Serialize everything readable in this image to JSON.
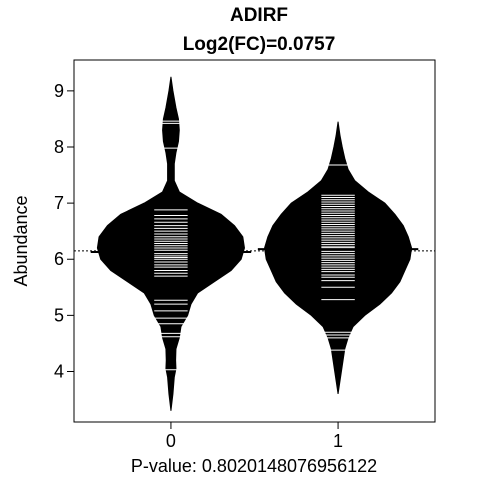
{
  "chart_data": {
    "type": "beanplot",
    "title": "ADIRF",
    "subtitle": "Log2(FC)=0.0757",
    "xlabel": "P-value: 0.8020148076956122",
    "ylabel": "Abundance",
    "ylim": [
      3.1,
      9.55
    ],
    "xlim": [
      -0.58,
      1.58
    ],
    "categories": [
      "0",
      "1"
    ],
    "yticks": [
      4,
      5,
      6,
      7,
      8,
      9
    ],
    "overall_mean": 6.15,
    "beans": [
      {
        "category": "0",
        "mean": 6.13,
        "density": [
          [
            3.3,
            0.0
          ],
          [
            3.6,
            0.012
          ],
          [
            3.9,
            0.02
          ],
          [
            4.05,
            0.03
          ],
          [
            4.2,
            0.028
          ],
          [
            4.4,
            0.03
          ],
          [
            4.6,
            0.05
          ],
          [
            4.8,
            0.06
          ],
          [
            5.0,
            0.1
          ],
          [
            5.2,
            0.12
          ],
          [
            5.4,
            0.16
          ],
          [
            5.6,
            0.26
          ],
          [
            5.8,
            0.36
          ],
          [
            6.0,
            0.42
          ],
          [
            6.2,
            0.44
          ],
          [
            6.4,
            0.43
          ],
          [
            6.6,
            0.38
          ],
          [
            6.8,
            0.3
          ],
          [
            7.0,
            0.16
          ],
          [
            7.2,
            0.05
          ],
          [
            7.4,
            0.02
          ],
          [
            7.7,
            0.02
          ],
          [
            7.9,
            0.03
          ],
          [
            8.1,
            0.045
          ],
          [
            8.3,
            0.05
          ],
          [
            8.5,
            0.045
          ],
          [
            8.7,
            0.03
          ],
          [
            9.0,
            0.012
          ],
          [
            9.25,
            0.0
          ]
        ],
        "observations": [
          4.03,
          4.62,
          4.68,
          4.85,
          4.95,
          5.08,
          5.2,
          5.27,
          5.7,
          5.75,
          5.8,
          5.86,
          5.9,
          5.95,
          6.0,
          6.03,
          6.06,
          6.1,
          6.13,
          6.16,
          6.2,
          6.24,
          6.28,
          6.32,
          6.36,
          6.4,
          6.45,
          6.5,
          6.55,
          6.6,
          6.66,
          6.72,
          6.78,
          6.88,
          7.98,
          8.42,
          8.46
        ]
      },
      {
        "category": "1",
        "mean": 6.18,
        "density": [
          [
            3.6,
            0.0
          ],
          [
            3.8,
            0.01
          ],
          [
            4.0,
            0.02
          ],
          [
            4.2,
            0.03
          ],
          [
            4.4,
            0.04
          ],
          [
            4.6,
            0.06
          ],
          [
            4.8,
            0.09
          ],
          [
            5.0,
            0.16
          ],
          [
            5.2,
            0.25
          ],
          [
            5.4,
            0.32
          ],
          [
            5.6,
            0.37
          ],
          [
            5.8,
            0.4
          ],
          [
            6.0,
            0.43
          ],
          [
            6.2,
            0.44
          ],
          [
            6.4,
            0.42
          ],
          [
            6.6,
            0.39
          ],
          [
            6.8,
            0.34
          ],
          [
            7.0,
            0.28
          ],
          [
            7.2,
            0.18
          ],
          [
            7.4,
            0.1
          ],
          [
            7.6,
            0.06
          ],
          [
            7.8,
            0.04
          ],
          [
            8.0,
            0.025
          ],
          [
            8.2,
            0.012
          ],
          [
            8.45,
            0.0
          ]
        ],
        "observations": [
          4.38,
          4.6,
          4.65,
          4.7,
          5.28,
          5.5,
          5.62,
          5.68,
          5.72,
          5.78,
          5.82,
          5.86,
          5.9,
          5.94,
          5.98,
          6.02,
          6.06,
          6.1,
          6.14,
          6.2,
          6.22,
          6.26,
          6.3,
          6.34,
          6.38,
          6.42,
          6.46,
          6.5,
          6.54,
          6.58,
          6.62,
          6.66,
          6.7,
          6.74,
          6.78,
          6.82,
          6.86,
          6.9,
          6.94,
          6.98,
          7.02,
          7.06,
          7.1,
          7.14,
          7.68
        ]
      }
    ]
  }
}
